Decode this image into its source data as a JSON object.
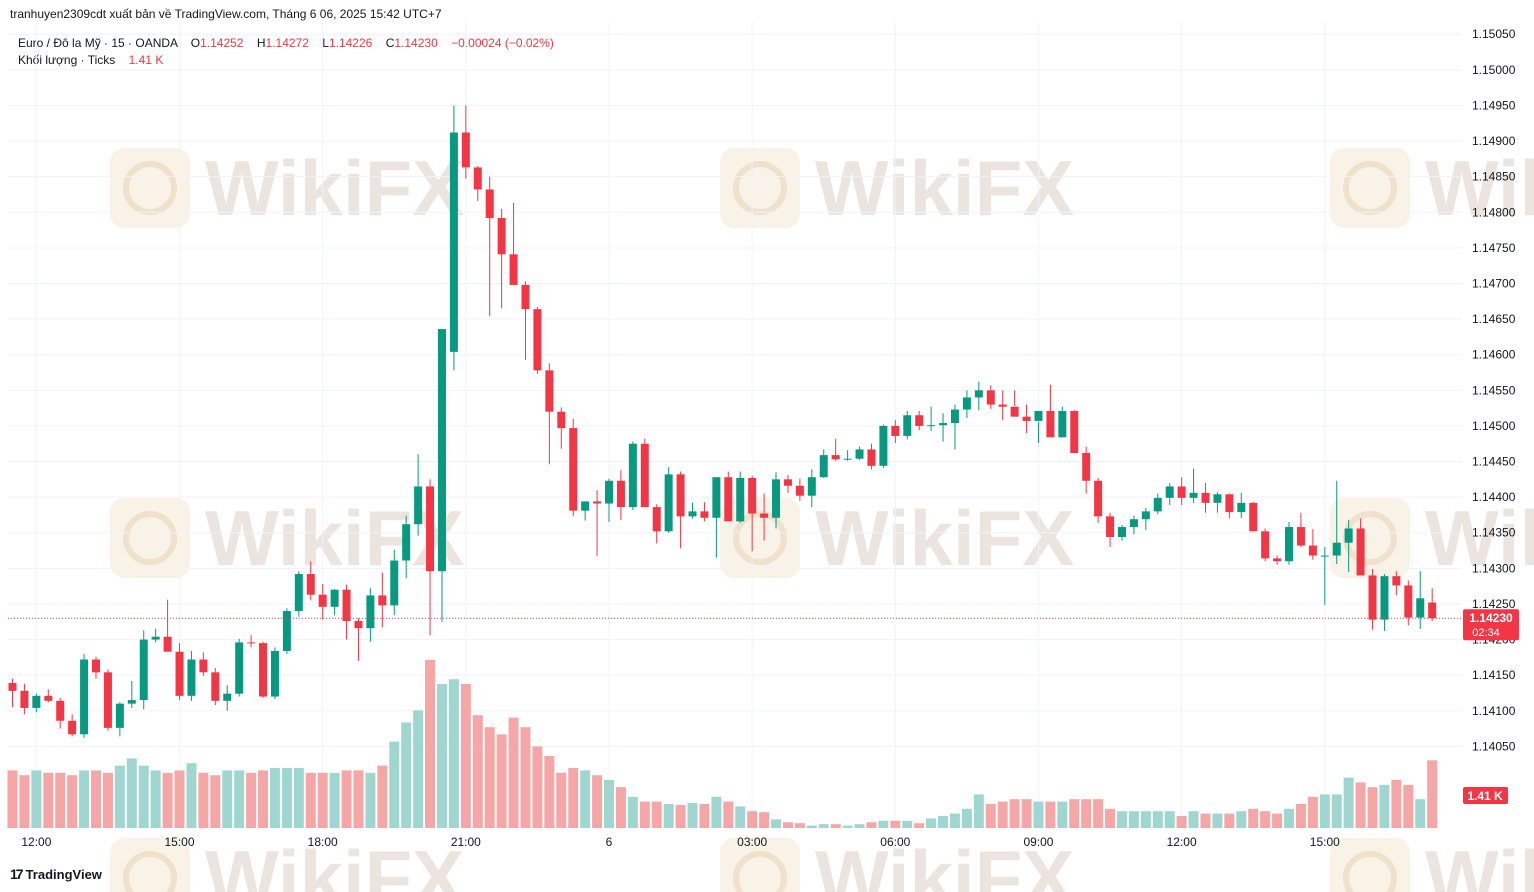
{
  "header": {
    "publisher": "tranhuyen2309cdt xuất bản về TradingView.com, Tháng 6 06, 2025 15:42 UTC+7"
  },
  "legend": {
    "symbol": "Euro / Đô la Mỹ · 15 · OANDA",
    "o_label": "O",
    "o_value": "1.14252",
    "h_label": "H",
    "h_value": "1.14272",
    "l_label": "L",
    "l_value": "1.14226",
    "c_label": "C",
    "c_value": "1.14230",
    "change": "−0.00024 (−0.02%)",
    "volume_label": "Khối lượng · Ticks",
    "volume_value": "1.41 K"
  },
  "price_tag": {
    "price": "1.14230",
    "countdown": "02:34"
  },
  "volume_tag": "1.41 K",
  "watermark": "WikiFX",
  "footer": {
    "brand": "TradingView",
    "logo": "17"
  },
  "colors": {
    "up": "#089981",
    "down": "#f23645",
    "vol_up": "#9fd7d0",
    "vol_down": "#f5a6a6",
    "grid": "#f0f3fa",
    "watermark": "#f3e7d3"
  },
  "chart_data": {
    "type": "candlestick",
    "title": "Euro / Đô la Mỹ · 15 · OANDA",
    "interval": "15 minutes",
    "ylim": [
      1.14,
      1.1507
    ],
    "y_ticks": [
      "1.15050",
      "1.15000",
      "1.14950",
      "1.14900",
      "1.14850",
      "1.14800",
      "1.14750",
      "1.14700",
      "1.14650",
      "1.14600",
      "1.14550",
      "1.14500",
      "1.14450",
      "1.14400",
      "1.14350",
      "1.14300",
      "1.14250",
      "1.14200",
      "1.14150",
      "1.14100",
      "1.14050"
    ],
    "x_ticks": [
      {
        "label": "12:00",
        "bar": 2
      },
      {
        "label": "15:00",
        "bar": 14
      },
      {
        "label": "18:00",
        "bar": 26
      },
      {
        "label": "21:00",
        "bar": 38
      },
      {
        "label": "6",
        "bar": 50
      },
      {
        "label": "03:00",
        "bar": 62
      },
      {
        "label": "06:00",
        "bar": 74
      },
      {
        "label": "09:00",
        "bar": 86
      },
      {
        "label": "12:00",
        "bar": 98
      },
      {
        "label": "15:00",
        "bar": 110
      }
    ],
    "last_price": 1.1423,
    "ohlcv": [
      [
        1.14139,
        1.14145,
        1.14105,
        1.14128,
        1.2
      ],
      [
        1.14128,
        1.14138,
        1.14095,
        1.14104,
        1.1
      ],
      [
        1.14104,
        1.14124,
        1.14098,
        1.14121,
        1.2
      ],
      [
        1.14121,
        1.1413,
        1.14112,
        1.14114,
        1.15
      ],
      [
        1.14114,
        1.14118,
        1.14075,
        1.14086,
        1.15
      ],
      [
        1.14086,
        1.14095,
        1.14064,
        1.14067,
        1.1
      ],
      [
        1.14067,
        1.1418,
        1.14062,
        1.14172,
        1.2
      ],
      [
        1.14172,
        1.14176,
        1.14145,
        1.14154,
        1.2
      ],
      [
        1.14154,
        1.14158,
        1.14072,
        1.14076,
        1.15
      ],
      [
        1.14076,
        1.14112,
        1.14064,
        1.1411,
        1.3
      ],
      [
        1.1411,
        1.14142,
        1.14104,
        1.14115,
        1.45
      ],
      [
        1.14115,
        1.14213,
        1.14102,
        1.142,
        1.3
      ],
      [
        1.142,
        1.14215,
        1.14196,
        1.14204,
        1.2
      ],
      [
        1.14204,
        1.14256,
        1.14185,
        1.14183,
        1.15
      ],
      [
        1.14183,
        1.14195,
        1.14115,
        1.14121,
        1.2
      ],
      [
        1.14121,
        1.14184,
        1.14114,
        1.14172,
        1.35
      ],
      [
        1.14172,
        1.14182,
        1.14149,
        1.14154,
        1.15
      ],
      [
        1.14154,
        1.1416,
        1.14108,
        1.14114,
        1.1
      ],
      [
        1.14114,
        1.14136,
        1.141,
        1.14124,
        1.2
      ],
      [
        1.14124,
        1.14201,
        1.1412,
        1.14196,
        1.2
      ],
      [
        1.14196,
        1.14206,
        1.14189,
        1.14195,
        1.15
      ],
      [
        1.14195,
        1.14197,
        1.14118,
        1.1412,
        1.2
      ],
      [
        1.1412,
        1.14189,
        1.14116,
        1.14184,
        1.25
      ],
      [
        1.14184,
        1.14244,
        1.1418,
        1.1424,
        1.25
      ],
      [
        1.1424,
        1.14296,
        1.14232,
        1.14292,
        1.25
      ],
      [
        1.14292,
        1.1431,
        1.14255,
        1.14263,
        1.15
      ],
      [
        1.14263,
        1.14278,
        1.14228,
        1.14246,
        1.15
      ],
      [
        1.14246,
        1.14271,
        1.14234,
        1.1427,
        1.15
      ],
      [
        1.1427,
        1.14277,
        1.142,
        1.14226,
        1.2
      ],
      [
        1.14226,
        1.1423,
        1.1417,
        1.14216,
        1.2
      ],
      [
        1.14216,
        1.14272,
        1.14197,
        1.14262,
        1.15
      ],
      [
        1.14262,
        1.14294,
        1.14217,
        1.14248,
        1.3
      ],
      [
        1.14248,
        1.14326,
        1.14234,
        1.14311,
        1.8
      ],
      [
        1.14311,
        1.14374,
        1.14286,
        1.14362,
        2.2
      ],
      [
        1.14362,
        1.1446,
        1.14346,
        1.14415,
        2.45
      ],
      [
        1.14415,
        1.14425,
        1.14206,
        1.14296,
        3.5
      ],
      [
        1.14296,
        1.145,
        1.14225,
        1.14636,
        3.0
      ],
      [
        1.14604,
        1.1495,
        1.14578,
        1.14912,
        3.1
      ],
      [
        1.14912,
        1.1495,
        1.14847,
        1.14863,
        3.0
      ],
      [
        1.14863,
        1.14865,
        1.14816,
        1.14832,
        2.35
      ],
      [
        1.14832,
        1.1485,
        1.14654,
        1.14792,
        2.1
      ],
      [
        1.14792,
        1.14805,
        1.14665,
        1.14741,
        1.95
      ],
      [
        1.14741,
        1.14813,
        1.147,
        1.14698,
        2.3
      ],
      [
        1.14698,
        1.14703,
        1.14593,
        1.14664,
        2.1
      ],
      [
        1.14664,
        1.14667,
        1.14573,
        1.14578,
        1.7
      ],
      [
        1.14578,
        1.14588,
        1.14446,
        1.1452,
        1.5
      ],
      [
        1.1452,
        1.14526,
        1.14468,
        1.14497,
        1.15
      ],
      [
        1.14497,
        1.1451,
        1.14373,
        1.14381,
        1.25
      ],
      [
        1.14381,
        1.14394,
        1.14367,
        1.14394,
        1.2
      ],
      [
        1.14394,
        1.1441,
        1.14317,
        1.14391,
        1.1
      ],
      [
        1.14391,
        1.14426,
        1.14365,
        1.14423,
        1.0
      ],
      [
        1.14423,
        1.14438,
        1.14368,
        1.14386,
        0.85
      ],
      [
        1.14386,
        1.14478,
        1.14382,
        1.14475,
        0.65
      ],
      [
        1.14475,
        1.14482,
        1.14387,
        1.14386,
        0.55
      ],
      [
        1.14386,
        1.1439,
        1.14335,
        1.14352,
        0.55
      ],
      [
        1.14352,
        1.14442,
        1.1435,
        1.14432,
        0.5
      ],
      [
        1.14432,
        1.14436,
        1.14328,
        1.14373,
        0.48
      ],
      [
        1.14373,
        1.14392,
        1.1437,
        1.1438,
        0.52
      ],
      [
        1.1438,
        1.14393,
        1.14366,
        1.14371,
        0.5
      ],
      [
        1.14371,
        1.14425,
        1.14315,
        1.14428,
        0.65
      ],
      [
        1.14428,
        1.14436,
        1.14367,
        1.14366,
        0.55
      ],
      [
        1.14366,
        1.14436,
        1.14364,
        1.14427,
        0.45
      ],
      [
        1.14427,
        1.1443,
        1.14324,
        1.14377,
        0.35
      ],
      [
        1.14377,
        1.14405,
        1.14339,
        1.14371,
        0.33
      ],
      [
        1.14371,
        1.14435,
        1.14356,
        1.14425,
        0.18
      ],
      [
        1.14425,
        1.14431,
        1.14406,
        1.14416,
        0.12
      ],
      [
        1.14416,
        1.14426,
        1.14395,
        1.14402,
        0.1
      ],
      [
        1.14402,
        1.14439,
        1.14386,
        1.14428,
        0.05
      ],
      [
        1.14428,
        1.14467,
        1.14427,
        1.14459,
        0.08
      ],
      [
        1.14459,
        1.14482,
        1.14451,
        1.14453,
        0.08
      ],
      [
        1.14453,
        1.14466,
        1.14451,
        1.14454,
        0.05
      ],
      [
        1.14454,
        1.14471,
        1.14452,
        1.14467,
        0.08
      ],
      [
        1.14467,
        1.14475,
        1.14439,
        1.14444,
        0.12
      ],
      [
        1.14444,
        1.14502,
        1.14441,
        1.145,
        0.15
      ],
      [
        1.145,
        1.14508,
        1.14476,
        1.14486,
        0.15
      ],
      [
        1.14486,
        1.14521,
        1.14481,
        1.14515,
        0.15
      ],
      [
        1.14515,
        1.14521,
        1.14494,
        1.145,
        0.1
      ],
      [
        1.145,
        1.14527,
        1.14493,
        1.14501,
        0.2
      ],
      [
        1.14501,
        1.14518,
        1.14478,
        1.14504,
        0.25
      ],
      [
        1.14504,
        1.1453,
        1.14467,
        1.14523,
        0.3
      ],
      [
        1.14523,
        1.1455,
        1.14511,
        1.1454,
        0.4
      ],
      [
        1.1454,
        1.14562,
        1.14522,
        1.1455,
        0.7
      ],
      [
        1.1455,
        1.14557,
        1.14524,
        1.1453,
        0.5
      ],
      [
        1.1453,
        1.1455,
        1.14508,
        1.14527,
        0.55
      ],
      [
        1.14527,
        1.1455,
        1.14528,
        1.14513,
        0.6
      ],
      [
        1.14513,
        1.1453,
        1.1449,
        1.14507,
        0.6
      ],
      [
        1.14507,
        1.14506,
        1.14476,
        1.14521,
        0.55
      ],
      [
        1.14521,
        1.14558,
        1.1452,
        1.14484,
        0.55
      ],
      [
        1.14484,
        1.14527,
        1.14484,
        1.14521,
        0.55
      ],
      [
        1.14521,
        1.14522,
        1.14462,
        1.14462,
        0.6
      ],
      [
        1.14462,
        1.14471,
        1.14405,
        1.14423,
        0.6
      ],
      [
        1.14423,
        1.14427,
        1.14364,
        1.14373,
        0.6
      ],
      [
        1.14373,
        1.14378,
        1.1433,
        1.14344,
        0.4
      ],
      [
        1.14344,
        1.14361,
        1.14339,
        1.14358,
        0.35
      ],
      [
        1.14358,
        1.14374,
        1.14348,
        1.14369,
        0.35
      ],
      [
        1.14369,
        1.14385,
        1.14354,
        1.1438,
        0.35
      ],
      [
        1.1438,
        1.14405,
        1.14376,
        1.14399,
        0.35
      ],
      [
        1.14399,
        1.1442,
        1.14389,
        1.14415,
        0.35
      ],
      [
        1.14415,
        1.14428,
        1.14389,
        1.14399,
        0.25
      ],
      [
        1.14399,
        1.1444,
        1.14392,
        1.14406,
        0.35
      ],
      [
        1.14406,
        1.1442,
        1.14378,
        1.14392,
        0.3
      ],
      [
        1.14392,
        1.14407,
        1.14378,
        1.14404,
        0.3
      ],
      [
        1.14404,
        1.14405,
        1.1437,
        1.14379,
        0.3
      ],
      [
        1.14379,
        1.14406,
        1.14371,
        1.14392,
        0.35
      ],
      [
        1.14392,
        1.14393,
        1.14353,
        1.14352,
        0.4
      ],
      [
        1.14352,
        1.14356,
        1.1431,
        1.14314,
        0.35
      ],
      [
        1.14314,
        1.14318,
        1.14305,
        1.1431,
        0.3
      ],
      [
        1.1431,
        1.14365,
        1.14305,
        1.14358,
        0.4
      ],
      [
        1.14358,
        1.14378,
        1.1433,
        1.14332,
        0.5
      ],
      [
        1.14332,
        1.14355,
        1.14312,
        1.14318,
        0.65
      ],
      [
        1.14318,
        1.1433,
        1.14249,
        1.14318,
        0.7
      ],
      [
        1.14318,
        1.14423,
        1.14306,
        1.14336,
        0.7
      ],
      [
        1.14336,
        1.14368,
        1.14295,
        1.14356,
        1.05
      ],
      [
        1.14356,
        1.1437,
        1.14291,
        1.1429,
        0.95
      ],
      [
        1.1429,
        1.14299,
        1.14214,
        1.14228,
        0.85
      ],
      [
        1.14228,
        1.14292,
        1.14212,
        1.14289,
        0.9
      ],
      [
        1.14289,
        1.14296,
        1.14262,
        1.14276,
        1.0
      ],
      [
        1.14276,
        1.14283,
        1.1422,
        1.14231,
        0.9
      ],
      [
        1.14231,
        1.14296,
        1.14215,
        1.14258,
        0.6
      ],
      [
        1.14252,
        1.14272,
        1.14226,
        1.1423,
        1.41
      ]
    ]
  }
}
